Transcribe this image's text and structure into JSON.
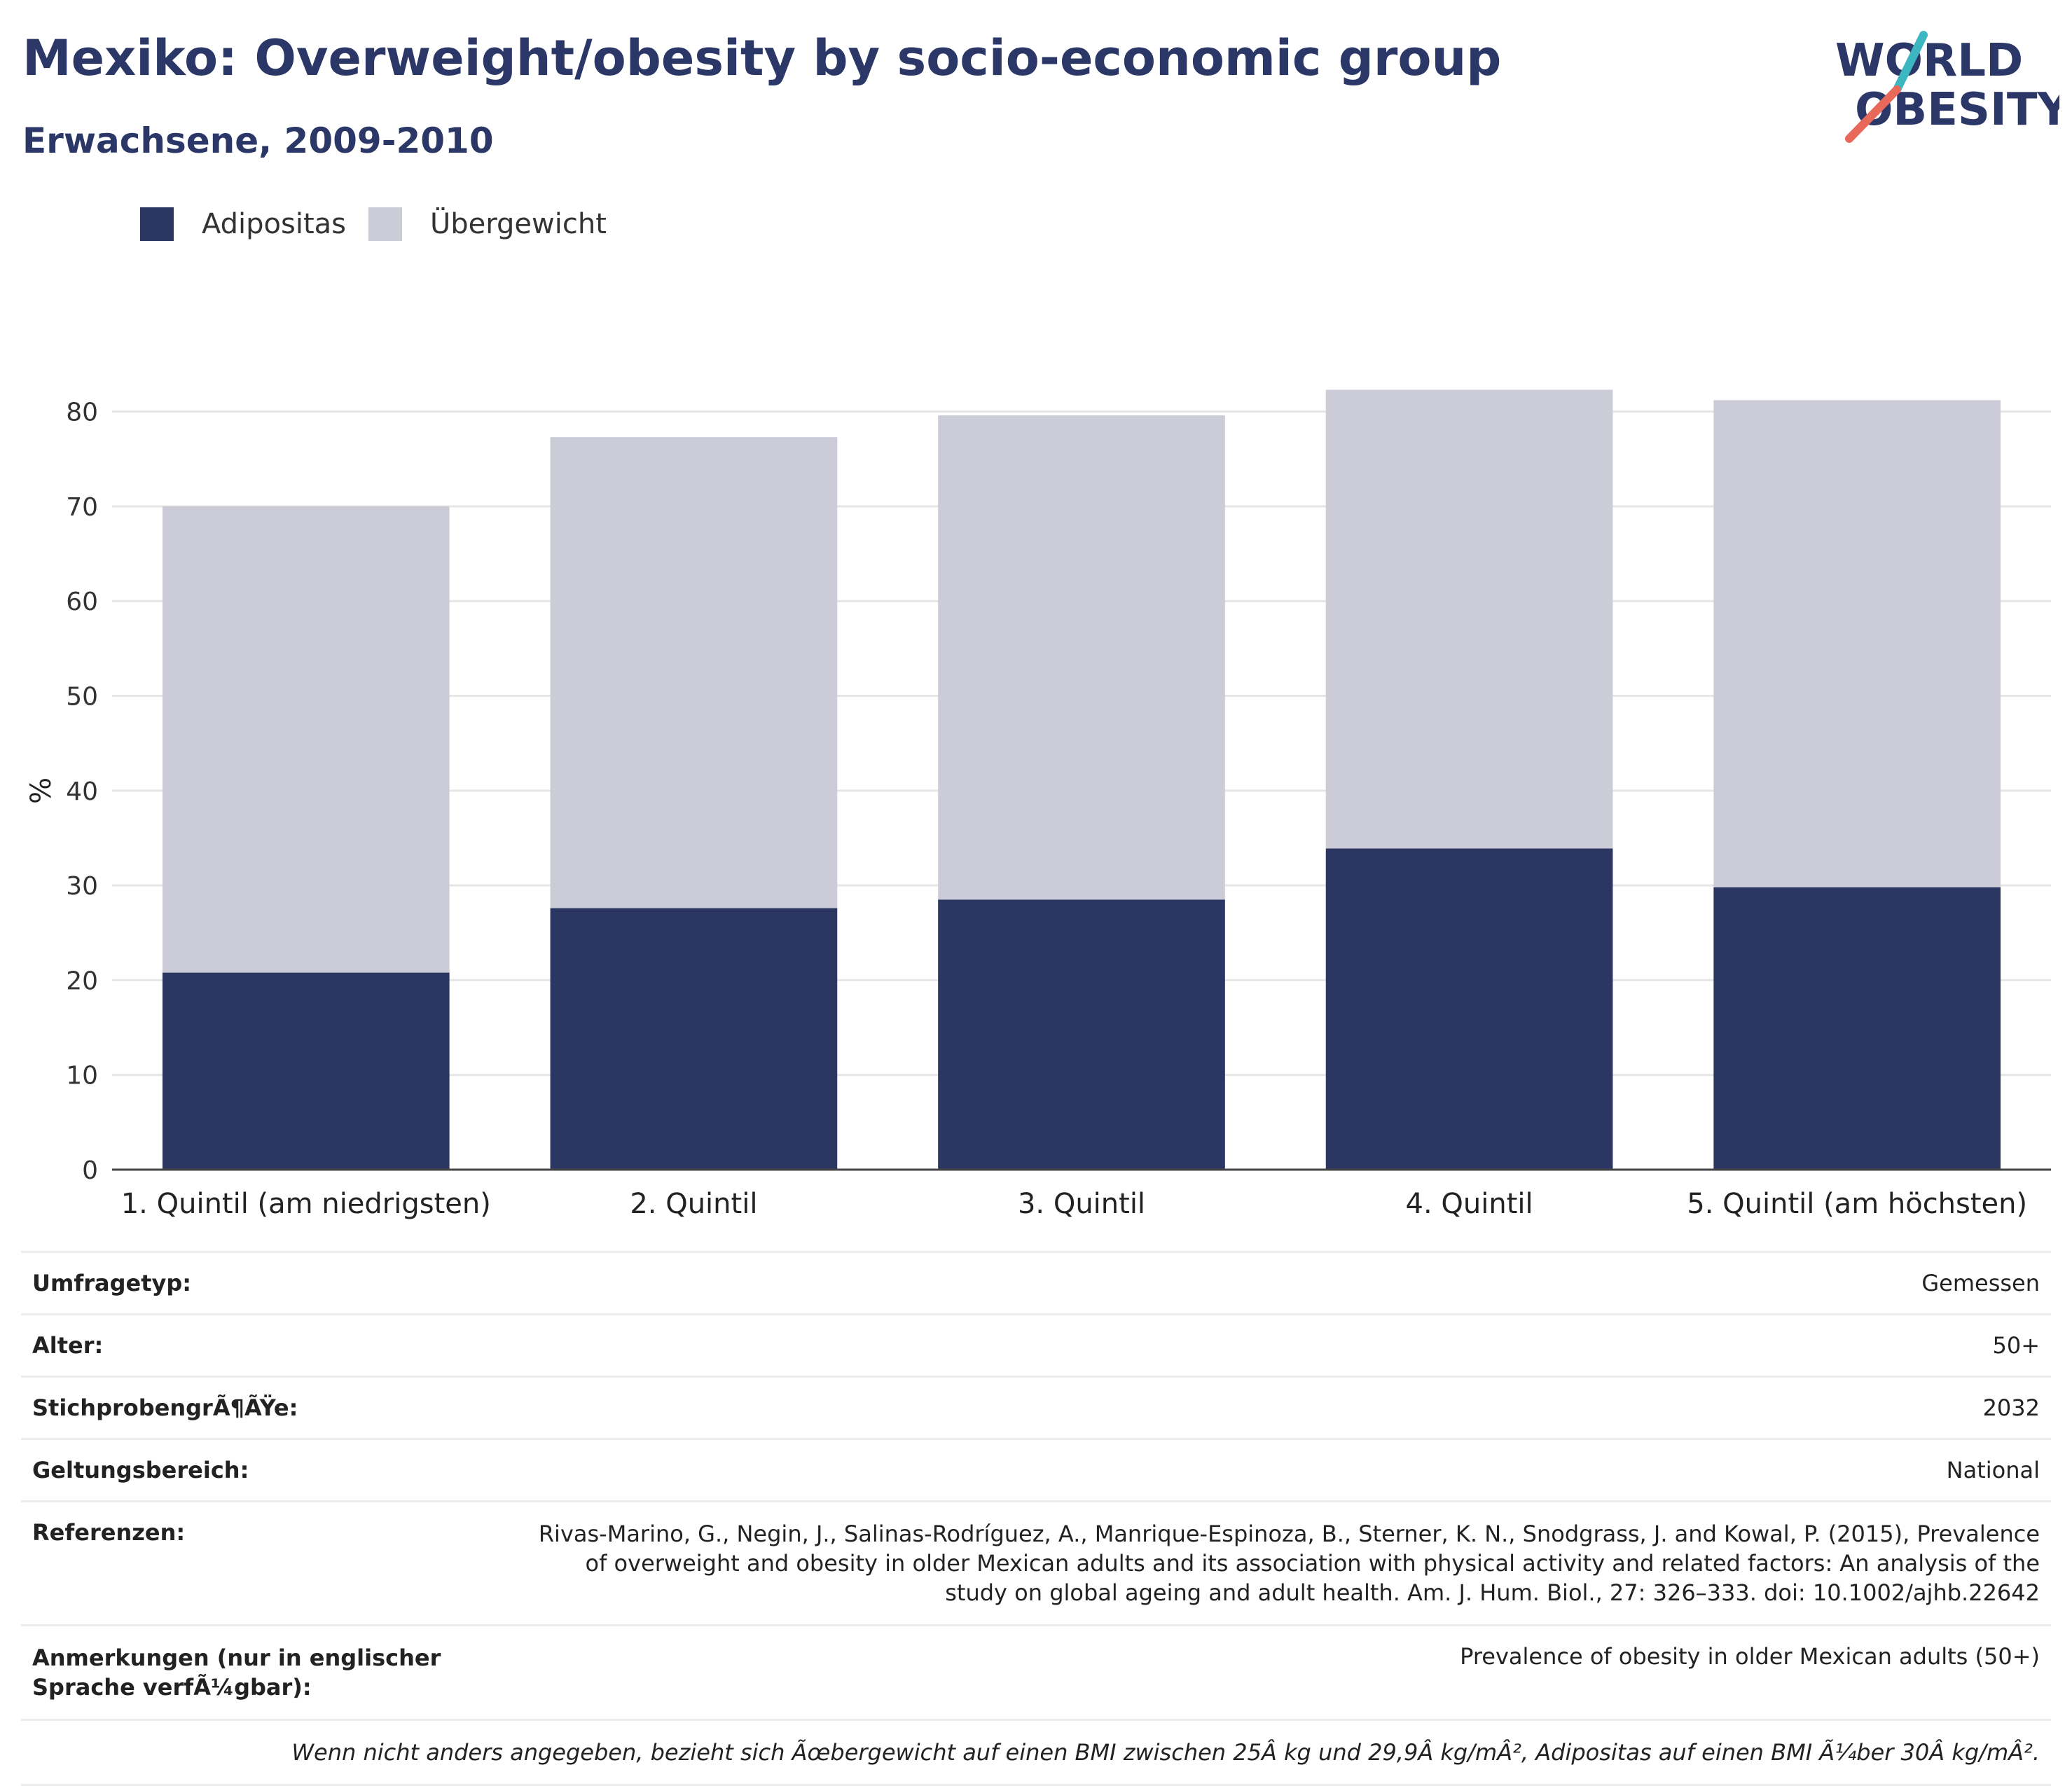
{
  "header": {
    "title": "Mexiko: Overweight/obesity by socio-economic group",
    "subtitle": "Erwachsene, 2009-2010"
  },
  "logo": {
    "line1": "WORLD",
    "line2": "OBESITY",
    "color_text": "#2b3766",
    "color_accent_teal": "#3cb6c1",
    "color_accent_red": "#e8685a"
  },
  "legend": [
    {
      "label": "Adipositas",
      "color": "#2b3663"
    },
    {
      "label": "Übergewicht",
      "color": "#cbccd8"
    }
  ],
  "chart_data": {
    "type": "bar",
    "stacked": true,
    "categories": [
      "1. Quintil (am niedrigsten)",
      "2. Quintil",
      "3. Quintil",
      "4. Quintil",
      "5. Quintil (am höchsten)"
    ],
    "series": [
      {
        "name": "Adipositas",
        "color": "#2b3663",
        "values": [
          20.8,
          27.6,
          28.5,
          33.9,
          29.8
        ]
      },
      {
        "name": "Übergewicht",
        "color": "#cbccd8",
        "values": [
          49.2,
          49.7,
          51.1,
          48.4,
          51.4
        ]
      }
    ],
    "ylabel": "%",
    "ylim": [
      0,
      85
    ],
    "yticks": [
      0,
      10,
      20,
      30,
      40,
      50,
      60,
      70,
      80
    ],
    "grid": true
  },
  "info": {
    "rows": [
      {
        "key": "Umfragetyp:",
        "value": "Gemessen"
      },
      {
        "key": "Alter:",
        "value": "50+"
      },
      {
        "key": "StichprobengrÃ¶ÃŸe:",
        "value": "2032"
      },
      {
        "key": "Geltungsbereich:",
        "value": "National"
      },
      {
        "key": "Referenzen:",
        "value": "Rivas-Marino, G., Negin, J., Salinas-Rodríguez, A., Manrique-Espinoza, B., Sterner, K. N., Snodgrass, J. and Kowal, P. (2015), Prevalence of overweight and obesity in older Mexican adults and its association with physical activity and related factors: An analysis of the study on global ageing and adult health. Am. J. Hum. Biol., 27: 326–333. doi: 10.1002/ajhb.22642"
      },
      {
        "key": "Anmerkungen (nur in englischer Sprache verfÃ¼gbar):",
        "value": "Prevalence of obesity in older Mexican adults (50+)"
      }
    ],
    "note": "Wenn nicht anders angegeben, bezieht sich Ãœbergewicht auf einen BMI zwischen 25Â kg und 29,9Â kg/mÂ², Adipositas auf einen BMI Ã¼ber 30Â kg/mÂ²."
  }
}
